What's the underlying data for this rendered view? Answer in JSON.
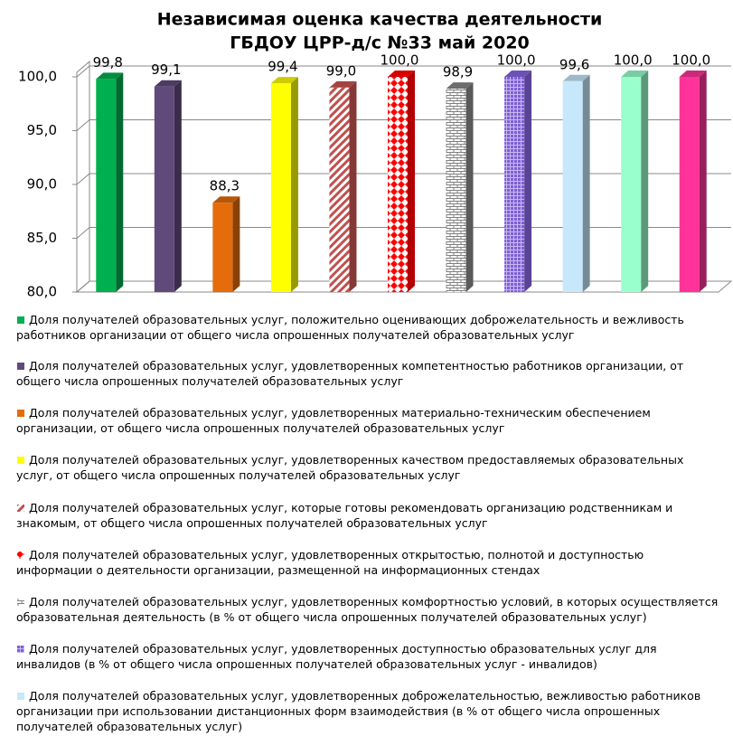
{
  "chart_data": {
    "type": "bar3d",
    "title": "Независимая оценка качества деятельности",
    "subtitle": "ГБДОУ ЦРР-д/с №33 май 2020",
    "ylim": [
      80,
      100
    ],
    "yticks": [
      {
        "value": 80,
        "label": "80,0"
      },
      {
        "value": 85,
        "label": "85,0"
      },
      {
        "value": 90,
        "label": "90,0"
      },
      {
        "value": 95,
        "label": "95,0"
      },
      {
        "value": 100,
        "label": "100,0"
      }
    ],
    "grid": true,
    "series": [
      {
        "name": "Доля получателей образовательных услуг, положительно оценивающих доброжелательность и вежливость работников организации от общего числа опрошенных получателей образовательных услуг",
        "color": "#00b050",
        "values": [
          99.8
        ],
        "value_labels": [
          "99,8"
        ]
      },
      {
        "name": "Доля получателей образовательных услуг, удовлетворенных компетентностью работников организации, от общего числа опрошенных получателей образовательных услуг",
        "color": "#604a7b",
        "values": [
          99.1
        ],
        "value_labels": [
          "99,1"
        ]
      },
      {
        "name": "Доля получателей образовательных услуг, удовлетворенных материально-техническим обеспечением организации, от общего числа опрошенных получателей образовательных услуг",
        "color": "#e46c0a",
        "values": [
          88.3
        ],
        "value_labels": [
          "88,3"
        ]
      },
      {
        "name": "Доля получателей образовательных услуг, удовлетворенных качеством предоставляемых образовательных услуг, от общего числа опрошенных получателей образовательных услуг",
        "color": "#ffff00",
        "values": [
          99.4
        ],
        "value_labels": [
          "99,4"
        ]
      },
      {
        "name": "Доля получателей образовательных услуг, которые готовы рекомендовать организацию родственникам и знакомым, от общего числа опрошенных получателей образовательных услуг",
        "color": "#c0504d",
        "pattern": "stripes",
        "values": [
          99.0
        ],
        "value_labels": [
          "99,0"
        ]
      },
      {
        "name": "Доля получателей образовательных услуг, удовлетворенных открытостью, полнотой и доступностью информации о деятельности организации, размещенной на информационных стендах",
        "color": "#ff0000",
        "pattern": "diamonds",
        "values": [
          100.0
        ],
        "value_labels": [
          "100,0"
        ]
      },
      {
        "name": "Доля получателей образовательных услуг, удовлетворенных комфортностью условий, в которых осуществляется образовательная деятельность (в % от общего числа опрошенных получателей образовательных услуг)",
        "color": "#808080",
        "pattern": "bricks",
        "values": [
          98.9
        ],
        "value_labels": [
          "98,9"
        ]
      },
      {
        "name": "Доля получателей образовательных услуг, удовлетворенных доступностью образовательных услуг для инвалидов (в % от общего числа опрошенных получателей образовательных услуг - инвалидов)",
        "color": "#7f5fd5",
        "pattern": "grid",
        "values": [
          100.0
        ],
        "value_labels": [
          "100,0"
        ]
      },
      {
        "name": "Доля получателей образовательных услуг, удовлетворенных доброжелательностью, вежливостью работников организации при использовании дистанционных форм взаимодействия (в % от общего числа опрошенных получателей образовательных услуг)",
        "color": "#c6e8fa",
        "values": [
          99.6
        ],
        "value_labels": [
          "99,6"
        ]
      },
      {
        "color": "#99ffcc",
        "values": [
          100.0
        ],
        "value_labels": [
          "100,0"
        ]
      },
      {
        "color": "#ff3399",
        "values": [
          100.0
        ],
        "value_labels": [
          "100,0"
        ]
      }
    ]
  }
}
